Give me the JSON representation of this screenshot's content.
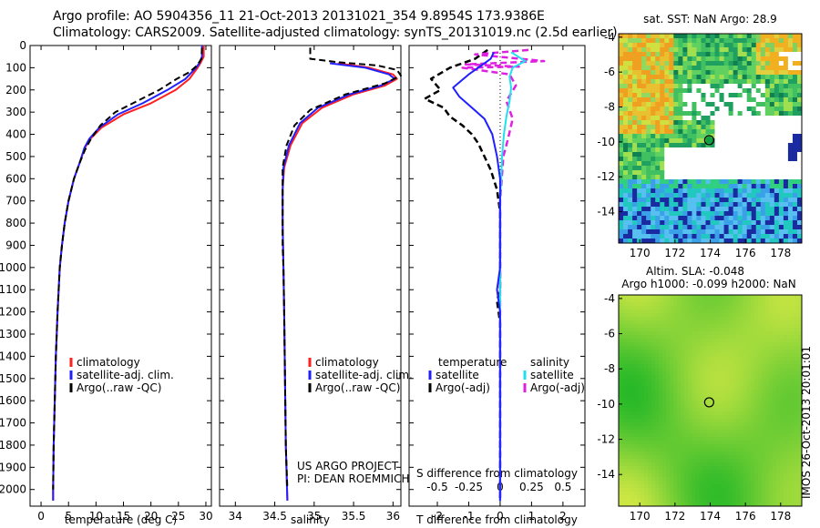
{
  "header": {
    "line1": "Argo profile: AO 5904356_11 21-Oct-2013 20131021_354 9.8954S 173.9386E",
    "line2": "Climatology: CARS2009. Satellite-adjusted climatology: synTS_20131019.nc (2.5d earlier)"
  },
  "colors": {
    "climatology": "#ff2020",
    "satellite": "#2020ff",
    "argo": "#000000",
    "sat_salinity": "#20e0f0",
    "argo_salinity": "#e020e0"
  },
  "chart_data": [
    {
      "id": "temperature",
      "type": "line",
      "xlabel": "temperature (deg C)",
      "ylabel": "",
      "xlim": [
        -2,
        31
      ],
      "ylim": [
        2075,
        0
      ],
      "xticks": [
        0,
        5,
        10,
        15,
        20,
        25,
        30
      ],
      "yticks": [
        0,
        100,
        200,
        300,
        400,
        500,
        600,
        700,
        800,
        900,
        1000,
        1100,
        1200,
        1300,
        1400,
        1500,
        1600,
        1700,
        1800,
        1900,
        2000
      ],
      "legend": [
        "climatology",
        "satellite-adj. clim.",
        "Argo(..raw -QC)"
      ],
      "legend_position": "lower-center",
      "series": [
        {
          "name": "climatology",
          "color": "#ff2020",
          "dash": false,
          "points": [
            [
              29.6,
              0
            ],
            [
              29.6,
              50
            ],
            [
              29.0,
              80
            ],
            [
              28.5,
              100
            ],
            [
              27.0,
              150
            ],
            [
              24.5,
              200
            ],
            [
              20.0,
              260
            ],
            [
              15.0,
              310
            ],
            [
              11.0,
              370
            ],
            [
              9.0,
              420
            ],
            [
              8.0,
              460
            ],
            [
              7.0,
              530
            ],
            [
              6.0,
              600
            ],
            [
              5.0,
              700
            ],
            [
              4.3,
              800
            ],
            [
              3.8,
              900
            ],
            [
              3.4,
              1000
            ],
            [
              3.0,
              1200
            ],
            [
              2.7,
              1400
            ],
            [
              2.5,
              1600
            ],
            [
              2.3,
              1800
            ],
            [
              2.2,
              2000
            ],
            [
              2.2,
              2050
            ]
          ]
        },
        {
          "name": "satellite-adj. clim.",
          "color": "#2020ff",
          "dash": false,
          "points": [
            [
              29.3,
              0
            ],
            [
              29.3,
              50
            ],
            [
              28.8,
              80
            ],
            [
              28.2,
              100
            ],
            [
              26.3,
              150
            ],
            [
              23.0,
              200
            ],
            [
              18.5,
              260
            ],
            [
              14.0,
              310
            ],
            [
              10.6,
              370
            ],
            [
              8.8,
              420
            ],
            [
              7.9,
              460
            ],
            [
              7.0,
              530
            ],
            [
              6.0,
              600
            ],
            [
              5.0,
              700
            ],
            [
              4.3,
              800
            ],
            [
              3.8,
              900
            ],
            [
              3.4,
              1000
            ],
            [
              3.0,
              1200
            ],
            [
              2.7,
              1400
            ],
            [
              2.5,
              1600
            ],
            [
              2.3,
              1800
            ],
            [
              2.2,
              2000
            ],
            [
              2.2,
              2050
            ]
          ]
        },
        {
          "name": "Argo(..raw -QC)",
          "color": "#000000",
          "dash": true,
          "points": [
            [
              29.3,
              10
            ],
            [
              29.2,
              60
            ],
            [
              28.4,
              90
            ],
            [
              27.0,
              120
            ],
            [
              24.7,
              150
            ],
            [
              21.5,
              200
            ],
            [
              17.5,
              250
            ],
            [
              13.5,
              300
            ],
            [
              10.8,
              360
            ],
            [
              9.1,
              420
            ],
            [
              8.0,
              470
            ],
            [
              7.0,
              530
            ],
            [
              6.0,
              600
            ],
            [
              5.0,
              700
            ],
            [
              4.3,
              800
            ],
            [
              3.8,
              900
            ],
            [
              3.4,
              1000
            ],
            [
              3.0,
              1200
            ],
            [
              2.7,
              1400
            ],
            [
              2.5,
              1600
            ],
            [
              2.3,
              1800
            ],
            [
              2.2,
              2000
            ]
          ]
        }
      ]
    },
    {
      "id": "salinity",
      "type": "line",
      "xlabel": "salinity",
      "ylabel": "",
      "xlim": [
        33.8,
        36.1
      ],
      "ylim": [
        2075,
        0
      ],
      "xticks": [
        34,
        34.5,
        35,
        35.5,
        36
      ],
      "legend": [
        "climatology",
        "satellite-adj. clim.",
        "Argo(..raw -QC)"
      ],
      "legend_position": "lower-center",
      "annotation": [
        "US ARGO PROJECT",
        "PI: DEAN ROEMMICH"
      ],
      "series": [
        {
          "name": "climatology",
          "color": "#ff2020",
          "dash": false,
          "points": [
            [
              35.3,
              80
            ],
            [
              35.7,
              100
            ],
            [
              36.0,
              130
            ],
            [
              36.05,
              150
            ],
            [
              35.9,
              180
            ],
            [
              35.5,
              220
            ],
            [
              35.1,
              280
            ],
            [
              34.85,
              350
            ],
            [
              34.7,
              450
            ],
            [
              34.62,
              550
            ],
            [
              34.6,
              650
            ],
            [
              34.6,
              800
            ],
            [
              34.61,
              1000
            ],
            [
              34.62,
              1200
            ],
            [
              34.63,
              1500
            ],
            [
              34.64,
              1800
            ],
            [
              34.66,
              2050
            ]
          ]
        },
        {
          "name": "satellite-adj. clim.",
          "color": "#2020ff",
          "dash": false,
          "points": [
            [
              35.2,
              80
            ],
            [
              35.65,
              100
            ],
            [
              35.95,
              130
            ],
            [
              36.02,
              150
            ],
            [
              35.85,
              180
            ],
            [
              35.45,
              220
            ],
            [
              35.05,
              280
            ],
            [
              34.82,
              350
            ],
            [
              34.68,
              450
            ],
            [
              34.61,
              550
            ],
            [
              34.6,
              650
            ],
            [
              34.6,
              800
            ],
            [
              34.61,
              1000
            ],
            [
              34.62,
              1200
            ],
            [
              34.63,
              1500
            ],
            [
              34.64,
              1800
            ],
            [
              34.66,
              2050
            ]
          ]
        },
        {
          "name": "Argo(..raw -QC)",
          "color": "#000000",
          "dash": true,
          "points": [
            [
              34.95,
              10
            ],
            [
              34.95,
              60
            ],
            [
              35.3,
              75
            ],
            [
              35.8,
              90
            ],
            [
              36.05,
              110
            ],
            [
              36.1,
              135
            ],
            [
              35.9,
              170
            ],
            [
              35.4,
              220
            ],
            [
              34.95,
              290
            ],
            [
              34.75,
              360
            ],
            [
              34.65,
              450
            ],
            [
              34.6,
              550
            ],
            [
              34.6,
              700
            ],
            [
              34.6,
              900
            ],
            [
              34.61,
              1000
            ],
            [
              34.62,
              1200
            ],
            [
              34.63,
              1500
            ],
            [
              34.64,
              1800
            ],
            [
              34.66,
              2000
            ]
          ]
        }
      ]
    },
    {
      "id": "difference",
      "type": "line",
      "xlabel": "T difference from climatology",
      "secondary_xlabel": "S difference from climatology",
      "xlim": [
        -2.9,
        2.7
      ],
      "ylim": [
        2075,
        0
      ],
      "xticks": [
        -2,
        -1,
        0,
        1,
        2
      ],
      "secondary_xticks": [
        -0.5,
        -0.25,
        0,
        0.25,
        0.5
      ],
      "legend_headers": [
        "temperature",
        "salinity"
      ],
      "legend": [
        "satellite",
        "Argo(-adj)",
        "satellite",
        "Argo(-adj)"
      ],
      "legend_position": "lower-center",
      "series": [
        {
          "name": "temperature satellite",
          "color": "#2020ff",
          "dash": false,
          "points": [
            [
              -0.2,
              30
            ],
            [
              -0.3,
              60
            ],
            [
              -0.6,
              90
            ],
            [
              -1.0,
              130
            ],
            [
              -1.5,
              190
            ],
            [
              -1.3,
              230
            ],
            [
              -0.9,
              280
            ],
            [
              -0.5,
              330
            ],
            [
              -0.25,
              400
            ],
            [
              -0.1,
              500
            ],
            [
              0,
              600
            ],
            [
              0,
              1000
            ],
            [
              -0.1,
              1100
            ],
            [
              0,
              1200
            ],
            [
              0,
              2050
            ]
          ]
        },
        {
          "name": "temperature Argo(-adj)",
          "color": "#000000",
          "dash": true,
          "points": [
            [
              -0.4,
              20
            ],
            [
              -0.8,
              60
            ],
            [
              -1.6,
              100
            ],
            [
              -2.2,
              150
            ],
            [
              -1.9,
              200
            ],
            [
              -2.4,
              240
            ],
            [
              -1.8,
              280
            ],
            [
              -1.6,
              320
            ],
            [
              -1.2,
              360
            ],
            [
              -0.9,
              400
            ],
            [
              -0.7,
              440
            ],
            [
              -0.5,
              500
            ],
            [
              -0.3,
              560
            ],
            [
              -0.1,
              650
            ],
            [
              0,
              750
            ],
            [
              0,
              1100
            ],
            [
              -0.1,
              1150
            ],
            [
              0,
              1250
            ],
            [
              0,
              2050
            ]
          ]
        },
        {
          "name": "salinity satellite",
          "color": "#20e0f0",
          "dash": false,
          "points": [
            [
              0.35,
              30
            ],
            [
              0.8,
              70
            ],
            [
              0.4,
              100
            ],
            [
              0.3,
              140
            ],
            [
              0.35,
              190
            ],
            [
              0.3,
              250
            ],
            [
              0.2,
              320
            ],
            [
              0.12,
              400
            ],
            [
              0.06,
              500
            ],
            [
              0.03,
              600
            ],
            [
              0,
              700
            ],
            [
              0,
              2050
            ]
          ]
        },
        {
          "name": "salinity Argo(-adj)",
          "color": "#e020e0",
          "dash": true,
          "points": [
            [
              0.9,
              20
            ],
            [
              -0.8,
              40
            ],
            [
              1.4,
              70
            ],
            [
              -1.1,
              85
            ],
            [
              0.6,
              95
            ],
            [
              -1.2,
              100
            ],
            [
              0.3,
              130
            ],
            [
              0.5,
              180
            ],
            [
              0.2,
              250
            ],
            [
              0.4,
              330
            ],
            [
              0.25,
              420
            ],
            [
              0.1,
              500
            ],
            [
              0.05,
              600
            ],
            [
              0,
              700
            ],
            [
              0,
              2050
            ]
          ]
        }
      ]
    },
    {
      "id": "sst-map",
      "type": "heatmap",
      "title": "sat. SST: NaN Argo: 28.9",
      "xlim": [
        168.8,
        179.2
      ],
      "ylim": [
        -15.8,
        -3.8
      ],
      "xticks": [
        170,
        172,
        174,
        176,
        178
      ],
      "yticks": [
        -4,
        -6,
        -8,
        -10,
        -12,
        -14
      ],
      "marker": {
        "lon": 173.94,
        "lat": -9.9
      }
    },
    {
      "id": "sla-map",
      "type": "heatmap",
      "title": "Altim. SLA: -0.048",
      "subtitle": "Argo h1000: -0.099 h2000: NaN",
      "xlim": [
        168.8,
        179.2
      ],
      "ylim": [
        -15.8,
        -3.8
      ],
      "xticks": [
        170,
        172,
        174,
        176,
        178
      ],
      "yticks": [
        -4,
        -6,
        -8,
        -10,
        -12,
        -14
      ],
      "marker": {
        "lon": 173.94,
        "lat": -9.9
      }
    }
  ],
  "credit": "IMOS 26-Oct-2013 20:01:01"
}
